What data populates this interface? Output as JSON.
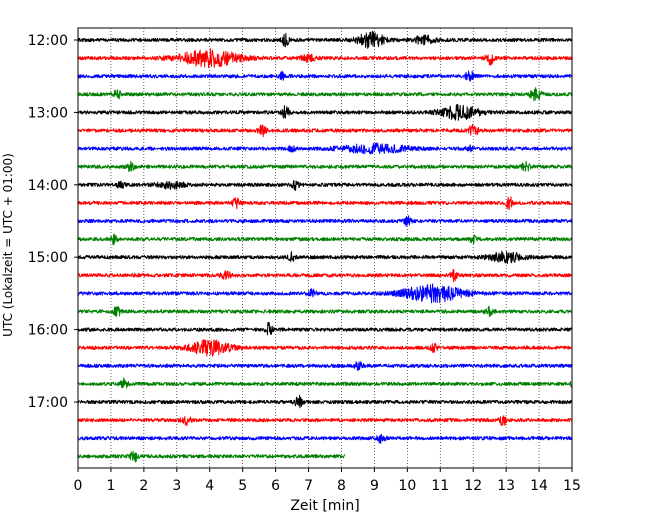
{
  "chart_data": {
    "type": "line",
    "subtype": "helicorder",
    "xlabel": "Zeit  [min]",
    "ylabel": "UTC (Lokalzeit = UTC + 01:00)",
    "xlim": [
      0,
      15
    ],
    "x_ticks": [
      0,
      1,
      2,
      3,
      4,
      5,
      6,
      7,
      8,
      9,
      10,
      11,
      12,
      13,
      14,
      15
    ],
    "y_tick_labels": [
      "12:00",
      "13:00",
      "14:00",
      "15:00",
      "16:00",
      "17:00"
    ],
    "grid": "vertical dotted",
    "trace_interval_min": 15,
    "color_cycle": [
      "#000000",
      "#ff0000",
      "#0000ff",
      "#008000"
    ],
    "traces": [
      {
        "start": "12:00",
        "end_min": 15,
        "events": [
          [
            6.3,
            0.1,
            0.8
          ],
          [
            8.9,
            0.4,
            0.9
          ],
          [
            10.5,
            0.3,
            0.5
          ]
        ]
      },
      {
        "start": "12:15",
        "end_min": 15,
        "events": [
          [
            4.0,
            0.9,
            1.0
          ],
          [
            7.0,
            0.3,
            0.3
          ],
          [
            12.5,
            0.12,
            0.9
          ]
        ]
      },
      {
        "start": "12:30",
        "end_min": 15,
        "events": [
          [
            6.2,
            0.07,
            0.5
          ],
          [
            11.9,
            0.12,
            0.7
          ]
        ]
      },
      {
        "start": "12:45",
        "end_min": 15,
        "events": [
          [
            1.2,
            0.1,
            0.6
          ],
          [
            13.9,
            0.15,
            0.7
          ]
        ]
      },
      {
        "start": "13:00",
        "end_min": 15,
        "events": [
          [
            6.3,
            0.1,
            0.8
          ],
          [
            11.6,
            0.6,
            0.8
          ]
        ]
      },
      {
        "start": "13:15",
        "end_min": 15,
        "events": [
          [
            5.6,
            0.12,
            0.6
          ],
          [
            12.0,
            0.15,
            0.6
          ]
        ]
      },
      {
        "start": "13:30",
        "end_min": 15,
        "events": [
          [
            6.5,
            0.1,
            0.4
          ],
          [
            9.0,
            1.0,
            0.5
          ],
          [
            11.9,
            0.1,
            0.4
          ]
        ]
      },
      {
        "start": "13:45",
        "end_min": 15,
        "events": [
          [
            1.6,
            0.1,
            0.6
          ],
          [
            13.6,
            0.12,
            0.6
          ]
        ]
      },
      {
        "start": "14:00",
        "end_min": 15,
        "events": [
          [
            1.3,
            0.1,
            0.5
          ],
          [
            2.8,
            0.4,
            0.4
          ],
          [
            6.6,
            0.1,
            0.5
          ]
        ]
      },
      {
        "start": "14:15",
        "end_min": 15,
        "events": [
          [
            4.8,
            0.1,
            0.6
          ],
          [
            13.1,
            0.1,
            0.7
          ]
        ]
      },
      {
        "start": "14:30",
        "end_min": 15,
        "events": [
          [
            10.0,
            0.1,
            0.6
          ]
        ]
      },
      {
        "start": "14:45",
        "end_min": 15,
        "events": [
          [
            1.1,
            0.1,
            0.6
          ],
          [
            12.0,
            0.1,
            0.4
          ]
        ]
      },
      {
        "start": "15:00",
        "end_min": 15,
        "events": [
          [
            6.5,
            0.1,
            0.5
          ],
          [
            13.0,
            0.5,
            0.6
          ]
        ]
      },
      {
        "start": "15:15",
        "end_min": 15,
        "events": [
          [
            4.5,
            0.15,
            0.4
          ],
          [
            11.4,
            0.1,
            0.7
          ]
        ]
      },
      {
        "start": "15:30",
        "end_min": 15,
        "events": [
          [
            7.1,
            0.12,
            0.4
          ],
          [
            10.8,
            0.9,
            1.0
          ]
        ]
      },
      {
        "start": "15:45",
        "end_min": 15,
        "events": [
          [
            1.2,
            0.1,
            0.7
          ],
          [
            12.5,
            0.12,
            0.5
          ]
        ]
      },
      {
        "start": "16:00",
        "end_min": 15,
        "events": [
          [
            5.8,
            0.1,
            0.8
          ]
        ]
      },
      {
        "start": "16:15",
        "end_min": 15,
        "events": [
          [
            4.0,
            0.6,
            0.9
          ],
          [
            10.8,
            0.1,
            0.5
          ]
        ]
      },
      {
        "start": "16:30",
        "end_min": 15,
        "events": [
          [
            8.5,
            0.12,
            0.5
          ]
        ]
      },
      {
        "start": "16:45",
        "end_min": 15,
        "events": [
          [
            1.4,
            0.1,
            0.6
          ],
          [
            15.0,
            0.05,
            0.4
          ]
        ]
      },
      {
        "start": "17:00",
        "end_min": 15,
        "events": [
          [
            6.7,
            0.1,
            0.7
          ]
        ]
      },
      {
        "start": "17:15",
        "end_min": 15,
        "events": [
          [
            3.3,
            0.12,
            0.6
          ],
          [
            12.9,
            0.1,
            0.7
          ]
        ]
      },
      {
        "start": "17:30",
        "end_min": 15,
        "events": [
          [
            9.2,
            0.12,
            0.5
          ]
        ]
      },
      {
        "start": "17:45",
        "end_min": 8.1,
        "events": [
          [
            1.7,
            0.12,
            0.6
          ]
        ]
      }
    ]
  }
}
